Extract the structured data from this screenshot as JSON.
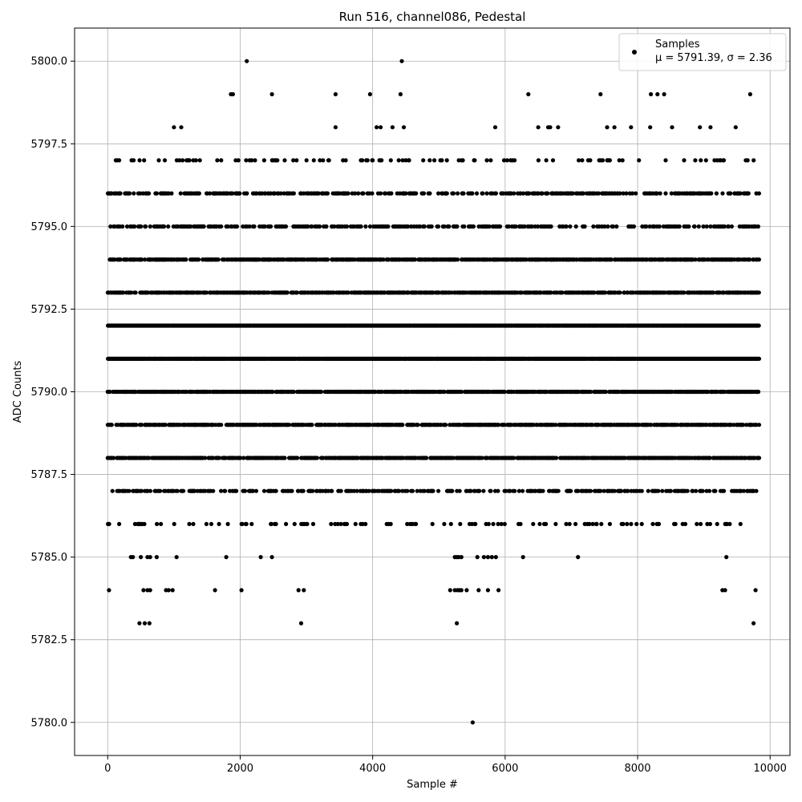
{
  "chart_data": {
    "type": "scatter",
    "title": "Run 516, channel086, Pedestal",
    "xlabel": "Sample #",
    "ylabel": "ADC Counts",
    "xlim": [
      -500,
      10300
    ],
    "ylim": [
      5779.0,
      5801.0
    ],
    "x_ticks": [
      0,
      2000,
      4000,
      6000,
      8000,
      10000
    ],
    "x_tick_labels": [
      "0",
      "2000",
      "4000",
      "6000",
      "8000",
      "10000"
    ],
    "y_ticks": [
      5780.0,
      5782.5,
      5785.0,
      5787.5,
      5790.0,
      5792.5,
      5795.0,
      5797.5,
      5800.0
    ],
    "y_tick_labels": [
      "5780.0",
      "5782.5",
      "5785.0",
      "5787.5",
      "5790.0",
      "5792.5",
      "5795.0",
      "5797.5",
      "5800.0"
    ],
    "grid": true,
    "legend_position": "top-right",
    "series": [
      {
        "name": "Samples",
        "legend_label": "μ = 5791.39, σ = 2.36",
        "color": "#000000",
        "marker": "dot",
        "x_range": [
          0,
          9830
        ],
        "level_counts": [
          {
            "y": 5800,
            "x": [
              2100,
              4440
            ]
          },
          {
            "y": 5799,
            "x": [
              1860,
              1890,
              2480,
              3440,
              3960,
              4420,
              6350,
              7440,
              8200,
              8300,
              8400,
              9700
            ]
          },
          {
            "y": 5798,
            "x": [
              1000,
              1110,
              3440,
              4060,
              4120,
              4300,
              4470,
              5850,
              6500,
              6650,
              6680,
              6800,
              7540,
              7650,
              7900,
              8190,
              8520,
              8940,
              9100,
              9480
            ]
          },
          {
            "y": 5797,
            "band": "sparse"
          },
          {
            "y": 5796,
            "band": "medium"
          },
          {
            "y": 5795,
            "band": "medium"
          },
          {
            "y": 5794,
            "band": "dense"
          },
          {
            "y": 5793,
            "band": "dense"
          },
          {
            "y": 5792,
            "band": "full"
          },
          {
            "y": 5791,
            "band": "full"
          },
          {
            "y": 5790,
            "band": "dense"
          },
          {
            "y": 5789,
            "band": "dense"
          },
          {
            "y": 5788,
            "band": "dense"
          },
          {
            "y": 5787,
            "band": "medium"
          },
          {
            "y": 5786,
            "band": "sparse"
          },
          {
            "y": 5785,
            "x": [
              350,
              380,
              500,
              600,
              640,
              740,
              1040,
              1790,
              2310,
              2480,
              5240,
              5270,
              5300,
              5340,
              5580,
              5680,
              5740,
              5800,
              5860,
              6270,
              7100,
              9340
            ]
          },
          {
            "y": 5784,
            "x": [
              20,
              540,
              600,
              640,
              880,
              920,
              980,
              1620,
              2020,
              2880,
              2960,
              5170,
              5240,
              5280,
              5310,
              5340,
              5420,
              5600,
              5740,
              5900,
              9280,
              9320,
              9780
            ]
          },
          {
            "y": 5783,
            "x": [
              480,
              560,
              630,
              2920,
              5270,
              9750
            ]
          },
          {
            "y": 5780,
            "x": [
              5510
            ]
          }
        ]
      }
    ]
  }
}
